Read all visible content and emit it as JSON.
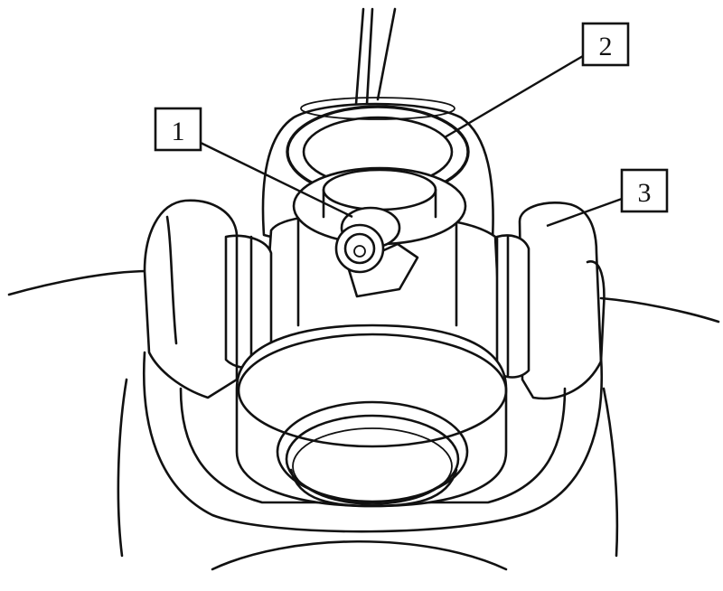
{
  "callouts": [
    {
      "id": "1",
      "label": "1"
    },
    {
      "id": "2",
      "label": "2"
    },
    {
      "id": "3",
      "label": "3"
    }
  ],
  "colors": {
    "ink": "#111111",
    "paper": "#ffffff"
  }
}
